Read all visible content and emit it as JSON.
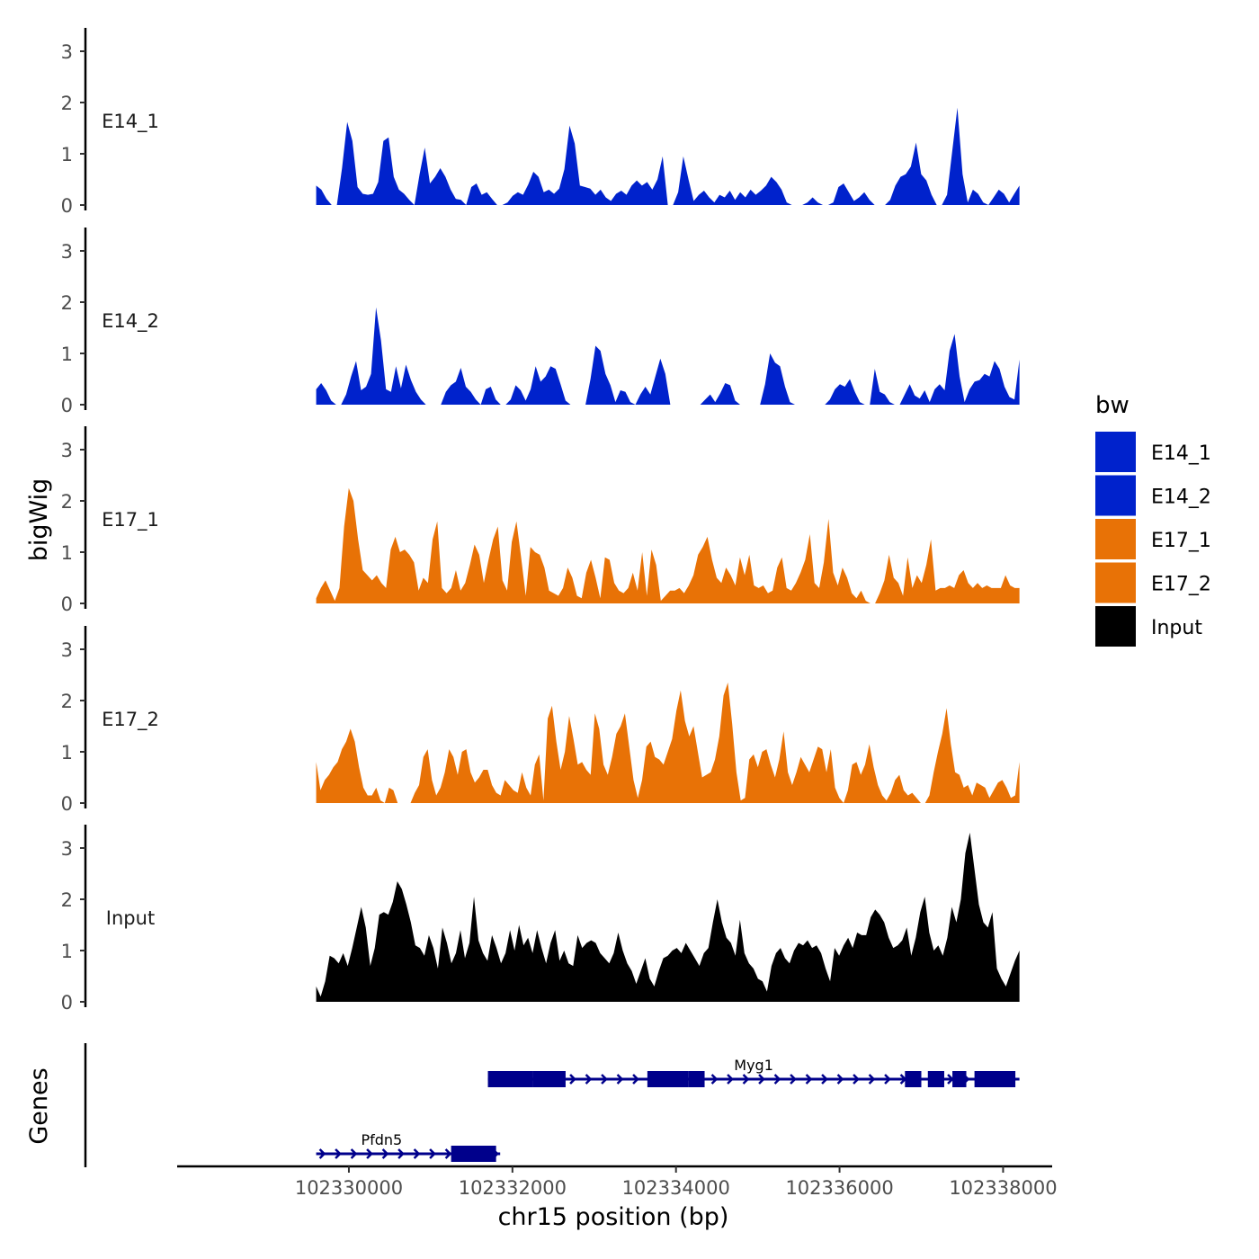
{
  "chart_data": {
    "type": "area",
    "title": "",
    "ylabel": "bigWig",
    "xlabel": "chr15 position (bp)",
    "x_range": [
      102329600,
      102338200
    ],
    "xlim": [
      102327900,
      102338600
    ],
    "x_ticks": [
      102330000,
      102332000,
      102334000,
      102336000,
      102338000
    ],
    "x_tick_labels": [
      "102330000",
      "102332000",
      "102334000",
      "102336000",
      "102338000"
    ],
    "ylim": [
      0,
      3.4
    ],
    "y_ticks": [
      0,
      1,
      2,
      3
    ],
    "y_tick_labels": [
      "0",
      "1",
      "2",
      "3"
    ],
    "grid": false,
    "legend": {
      "title": "bw",
      "position": "right",
      "entries": [
        {
          "label": "E14_1",
          "color": "#0022CC"
        },
        {
          "label": "E14_2",
          "color": "#0022CC"
        },
        {
          "label": "E17_1",
          "color": "#E87206"
        },
        {
          "label": "E17_2",
          "color": "#E87206"
        },
        {
          "label": "Input",
          "color": "#000000"
        }
      ]
    },
    "series": [
      {
        "name": "E14_1",
        "color": "#0022CC",
        "x_start": 102329600,
        "x_end": 102338200,
        "values": [
          0.38,
          0.3,
          0.12,
          0,
          0,
          0.72,
          1.62,
          1.25,
          0.35,
          0.22,
          0.2,
          0.22,
          0.45,
          1.25,
          1.32,
          0.55,
          0.3,
          0.22,
          0.1,
          0,
          0.6,
          1.12,
          0.42,
          0.55,
          0.72,
          0.55,
          0.3,
          0.12,
          0.1,
          0,
          0.35,
          0.42,
          0.2,
          0.25,
          0.12,
          0,
          0,
          0.05,
          0.18,
          0.25,
          0.2,
          0.4,
          0.65,
          0.55,
          0.25,
          0.3,
          0.22,
          0.32,
          0.7,
          1.55,
          1.2,
          0.38,
          0.35,
          0.32,
          0.2,
          0.3,
          0.15,
          0.08,
          0.22,
          0.28,
          0.2,
          0.38,
          0.48,
          0.38,
          0.45,
          0.3,
          0.5,
          0.95,
          0,
          0,
          0.25,
          0.95,
          0.5,
          0.08,
          0.2,
          0.28,
          0.15,
          0.05,
          0.2,
          0.15,
          0.28,
          0.1,
          0.25,
          0.15,
          0.3,
          0.2,
          0.28,
          0.38,
          0.55,
          0.45,
          0.3,
          0.05,
          0,
          0,
          0,
          0.05,
          0.15,
          0.05,
          0,
          0,
          0.05,
          0.35,
          0.42,
          0.25,
          0.08,
          0.15,
          0.25,
          0.1,
          0,
          0,
          0,
          0.1,
          0.38,
          0.55,
          0.6,
          0.75,
          1.22,
          0.6,
          0.48,
          0.2,
          0,
          0,
          0.2,
          1.05,
          1.9,
          0.6,
          0.05,
          0.3,
          0.22,
          0.05,
          0,
          0.15,
          0.3,
          0.22,
          0.05,
          0.22,
          0.38
        ]
      },
      {
        "name": "E14_2",
        "color": "#0022CC",
        "x_start": 102329600,
        "x_end": 102338200,
        "values": [
          0.3,
          0.42,
          0.28,
          0.08,
          0,
          0,
          0.2,
          0.55,
          0.85,
          0.28,
          0.35,
          0.6,
          1.9,
          1.25,
          0.3,
          0.25,
          0.75,
          0.32,
          0.78,
          0.48,
          0.25,
          0.1,
          0,
          0,
          0,
          0,
          0.25,
          0.38,
          0.45,
          0.72,
          0.35,
          0.25,
          0.1,
          0,
          0.3,
          0.35,
          0.1,
          0,
          0,
          0.1,
          0.38,
          0.28,
          0.08,
          0.3,
          0.75,
          0.45,
          0.55,
          0.75,
          0.7,
          0.4,
          0.08,
          0,
          0,
          0,
          0,
          0.5,
          1.15,
          1.05,
          0.6,
          0.38,
          0.05,
          0.28,
          0.25,
          0.05,
          0,
          0.2,
          0.35,
          0.2,
          0.55,
          0.9,
          0.6,
          0,
          0,
          0,
          0,
          0,
          0,
          0,
          0.1,
          0.2,
          0.05,
          0.22,
          0.42,
          0.38,
          0.08,
          0,
          0,
          0,
          0,
          0,
          0.4,
          1.0,
          0.82,
          0.75,
          0.35,
          0.05,
          0,
          0,
          0,
          0,
          0,
          0,
          0,
          0.1,
          0.3,
          0.4,
          0.35,
          0.5,
          0.25,
          0.05,
          0,
          0,
          0.7,
          0.25,
          0.2,
          0.05,
          0,
          0,
          0.2,
          0.4,
          0.18,
          0.12,
          0.28,
          0.05,
          0.3,
          0.4,
          0.28,
          1.05,
          1.38,
          0.55,
          0.05,
          0.3,
          0.45,
          0.48,
          0.6,
          0.55,
          0.85,
          0.7,
          0.35,
          0.15,
          0.1,
          0.88
        ]
      },
      {
        "name": "E17_1",
        "color": "#E87206",
        "x_start": 102329600,
        "x_end": 102338200,
        "values": [
          0.1,
          0.3,
          0.45,
          0.25,
          0.05,
          0.3,
          1.5,
          2.25,
          2.0,
          1.25,
          0.65,
          0.55,
          0.45,
          0.55,
          0.4,
          0.3,
          1.05,
          1.3,
          1.0,
          1.05,
          0.95,
          0.8,
          0.25,
          0.5,
          0.4,
          1.25,
          1.6,
          0.3,
          0.2,
          0.3,
          0.65,
          0.25,
          0.4,
          0.75,
          1.15,
          0.95,
          0.4,
          0.85,
          1.25,
          1.5,
          0.45,
          0.25,
          1.2,
          1.6,
          0.9,
          0.15,
          1.1,
          1.0,
          0.95,
          0.7,
          0.25,
          0.2,
          0.15,
          0.3,
          0.7,
          0.5,
          0.15,
          0.1,
          0.6,
          0.85,
          0.5,
          0.1,
          0.9,
          0.85,
          0.4,
          0.25,
          0.2,
          0.3,
          0.6,
          0.25,
          1.0,
          0.15,
          1.05,
          0.75,
          0.05,
          0.15,
          0.25,
          0.25,
          0.3,
          0.2,
          0.35,
          0.55,
          0.95,
          1.1,
          1.3,
          0.85,
          0.5,
          0.4,
          0.7,
          0.55,
          0.35,
          0.9,
          0.55,
          0.95,
          0.35,
          0.3,
          0.35,
          0.2,
          0.25,
          0.7,
          0.9,
          0.3,
          0.25,
          0.4,
          0.6,
          0.85,
          1.35,
          0.4,
          0.3,
          0.8,
          1.65,
          0.6,
          0.35,
          0.7,
          0.5,
          0.2,
          0.1,
          0.25,
          0.05,
          0,
          0,
          0.2,
          0.45,
          0.95,
          0.5,
          0.4,
          0.15,
          0.9,
          0.3,
          0.55,
          0.4,
          0.75,
          1.25,
          0.25,
          0.3,
          0.3,
          0.35,
          0.3,
          0.55,
          0.65,
          0.4,
          0.3,
          0.4,
          0.3,
          0.35,
          0.3,
          0.3,
          0.3,
          0.55,
          0.35,
          0.3,
          0.3
        ]
      },
      {
        "name": "E17_2",
        "color": "#E87206",
        "x_start": 102329600,
        "x_end": 102338200,
        "values": [
          0.8,
          0.25,
          0.45,
          0.55,
          0.7,
          0.8,
          1.05,
          1.2,
          1.45,
          1.2,
          0.7,
          0.3,
          0.15,
          0.15,
          0.3,
          0.05,
          0,
          0.3,
          0.25,
          0,
          0,
          0,
          0,
          0.2,
          0.35,
          0.9,
          1.05,
          0.45,
          0.15,
          0.3,
          0.6,
          1.05,
          0.9,
          0.55,
          1.0,
          1.05,
          0.6,
          0.4,
          0.5,
          0.65,
          0.65,
          0.35,
          0.2,
          0.15,
          0.45,
          0.35,
          0.25,
          0.2,
          0.6,
          0.3,
          0.15,
          0.75,
          0.95,
          0.05,
          1.65,
          1.9,
          1.2,
          0.65,
          1.0,
          1.7,
          1.25,
          0.75,
          0.8,
          0.65,
          0.55,
          1.75,
          1.45,
          0.75,
          0.55,
          0.9,
          1.35,
          1.5,
          1.75,
          1.1,
          0.45,
          0.1,
          0.45,
          1.1,
          1.2,
          0.9,
          0.85,
          0.75,
          1.0,
          1.25,
          1.8,
          2.2,
          1.6,
          1.3,
          1.5,
          1.0,
          0.5,
          0.55,
          0.6,
          0.85,
          1.3,
          2.1,
          2.35,
          1.55,
          0.6,
          0.05,
          0.1,
          0.85,
          0.95,
          0.7,
          1.0,
          1.05,
          0.75,
          0.5,
          0.85,
          1.4,
          0.6,
          0.35,
          0.6,
          0.9,
          0.75,
          0.6,
          0.85,
          1.1,
          1.05,
          0.6,
          1.05,
          0.3,
          0.1,
          0,
          0.25,
          0.75,
          0.8,
          0.55,
          0.75,
          1.15,
          0.7,
          0.35,
          0.15,
          0.05,
          0.2,
          0.45,
          0.55,
          0.25,
          0.15,
          0.2,
          0.1,
          0,
          0,
          0.15,
          0.6,
          1.0,
          1.35,
          1.85,
          1.15,
          0.6,
          0.55,
          0.3,
          0.35,
          0.15,
          0.4,
          0.35,
          0.3,
          0.1,
          0.25,
          0.4,
          0.45,
          0.3,
          0.1,
          0.15,
          0.8
        ]
      },
      {
        "name": "Input",
        "color": "#000000",
        "x_start": 102329600,
        "x_end": 102338200,
        "values": [
          0.3,
          0.1,
          0.4,
          0.9,
          0.85,
          0.75,
          0.95,
          0.7,
          1.05,
          1.45,
          1.85,
          1.45,
          0.7,
          1.05,
          1.7,
          1.75,
          1.7,
          1.95,
          2.35,
          2.2,
          1.9,
          1.55,
          1.1,
          1.05,
          0.9,
          1.3,
          1.05,
          0.65,
          1.45,
          1.15,
          0.75,
          0.95,
          1.4,
          0.85,
          1.15,
          2.05,
          1.2,
          0.95,
          0.8,
          1.3,
          1.05,
          0.75,
          0.95,
          1.4,
          1.0,
          1.5,
          1.1,
          1.25,
          0.95,
          1.4,
          1.05,
          0.75,
          1.15,
          1.4,
          0.8,
          1.0,
          0.75,
          0.7,
          1.3,
          1.05,
          1.15,
          1.2,
          1.15,
          0.95,
          0.85,
          0.75,
          0.95,
          1.35,
          1.0,
          0.75,
          0.6,
          0.35,
          0.6,
          0.85,
          0.45,
          0.3,
          0.6,
          0.85,
          0.9,
          1.0,
          1.05,
          0.95,
          1.15,
          1.0,
          0.85,
          0.7,
          0.95,
          1.05,
          1.55,
          2.0,
          1.55,
          1.25,
          1.15,
          0.9,
          1.6,
          0.95,
          0.75,
          0.65,
          0.45,
          0.4,
          0.2,
          0.7,
          0.95,
          1.05,
          0.85,
          0.75,
          1.0,
          1.15,
          1.1,
          1.2,
          1.05,
          1.1,
          0.95,
          0.65,
          0.4,
          1.05,
          0.9,
          1.1,
          1.25,
          1.05,
          1.35,
          1.3,
          1.3,
          1.65,
          1.8,
          1.7,
          1.55,
          1.25,
          1.05,
          1.1,
          1.2,
          1.45,
          0.9,
          1.25,
          1.75,
          2.05,
          1.35,
          1.0,
          1.1,
          0.9,
          1.25,
          1.85,
          1.55,
          2.0,
          2.9,
          3.3,
          2.6,
          1.9,
          1.55,
          1.45,
          1.75,
          0.65,
          0.45,
          0.3,
          0.55,
          0.8,
          1.0
        ]
      }
    ],
    "genes_track": {
      "label": "Genes",
      "genes": [
        {
          "name": "Myg1",
          "start": 102331700,
          "end": 102338200,
          "strand": "+",
          "exons": [
            [
              102331700,
              102332250
            ],
            [
              102332250,
              102332650
            ],
            [
              102333650,
              102334150
            ],
            [
              102334150,
              102334350
            ],
            [
              102336800,
              102337000
            ],
            [
              102337080,
              102337280
            ],
            [
              102337380,
              102337550
            ],
            [
              102337650,
              102338150
            ]
          ]
        },
        {
          "name": "Pfdn5",
          "start": 102329600,
          "end": 102331850,
          "strand": "+",
          "exons": [
            [
              102331250,
              102331800
            ]
          ]
        }
      ]
    }
  }
}
